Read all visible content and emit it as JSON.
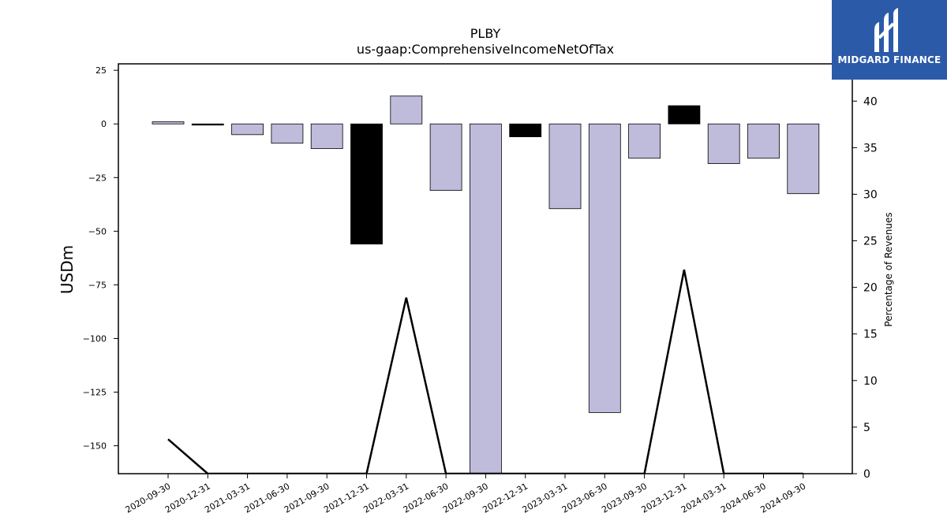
{
  "brand": {
    "name": "MIDGARD FINANCE",
    "color": "#2b5aa9"
  },
  "chart_data": {
    "type": "bar",
    "title": "PLBY",
    "subtitle": "us-gaap:ComprehensiveIncomeNetOfTax",
    "ylabel": "USDm",
    "y2label": "Percentage of Revenues",
    "ylim": [
      -163,
      28
    ],
    "y2lim": [
      0,
      44
    ],
    "yticks": [
      25,
      0,
      -25,
      -50,
      -75,
      -100,
      -125,
      -150
    ],
    "y2ticks": [
      0,
      5,
      10,
      15,
      20,
      25,
      30,
      35,
      40
    ],
    "categories": [
      "2020-09-30",
      "2020-12-31",
      "2021-03-31",
      "2021-06-30",
      "2021-09-30",
      "2021-12-31",
      "2022-03-31",
      "2022-06-30",
      "2022-09-30",
      "2022-12-31",
      "2023-03-31",
      "2023-06-30",
      "2023-09-30",
      "2023-12-31",
      "2024-03-31",
      "2024-06-30",
      "2024-09-30"
    ],
    "series": [
      {
        "type": "bar",
        "values": [
          1,
          -0.5,
          -5,
          -9,
          -11.5,
          -56,
          13,
          -31,
          -163,
          -6,
          -39.5,
          -134.5,
          -16,
          8.5,
          -18.5,
          -16,
          -32.5
        ],
        "colors": [
          "#bfbbdb",
          "#000000",
          "#bfbbdb",
          "#bfbbdb",
          "#bfbbdb",
          "#000000",
          "#bfbbdb",
          "#bfbbdb",
          "#bfbbdb",
          "#000000",
          "#bfbbdb",
          "#bfbbdb",
          "#bfbbdb",
          "#000000",
          "#bfbbdb",
          "#bfbbdb",
          "#bfbbdb"
        ]
      },
      {
        "type": "line",
        "axis": "right",
        "color": "#000000",
        "values": [
          3.7,
          0,
          0,
          0,
          0,
          0,
          18.9,
          0,
          0,
          0,
          0,
          0,
          0,
          21.9,
          0,
          0,
          0
        ]
      }
    ],
    "grid": false
  }
}
